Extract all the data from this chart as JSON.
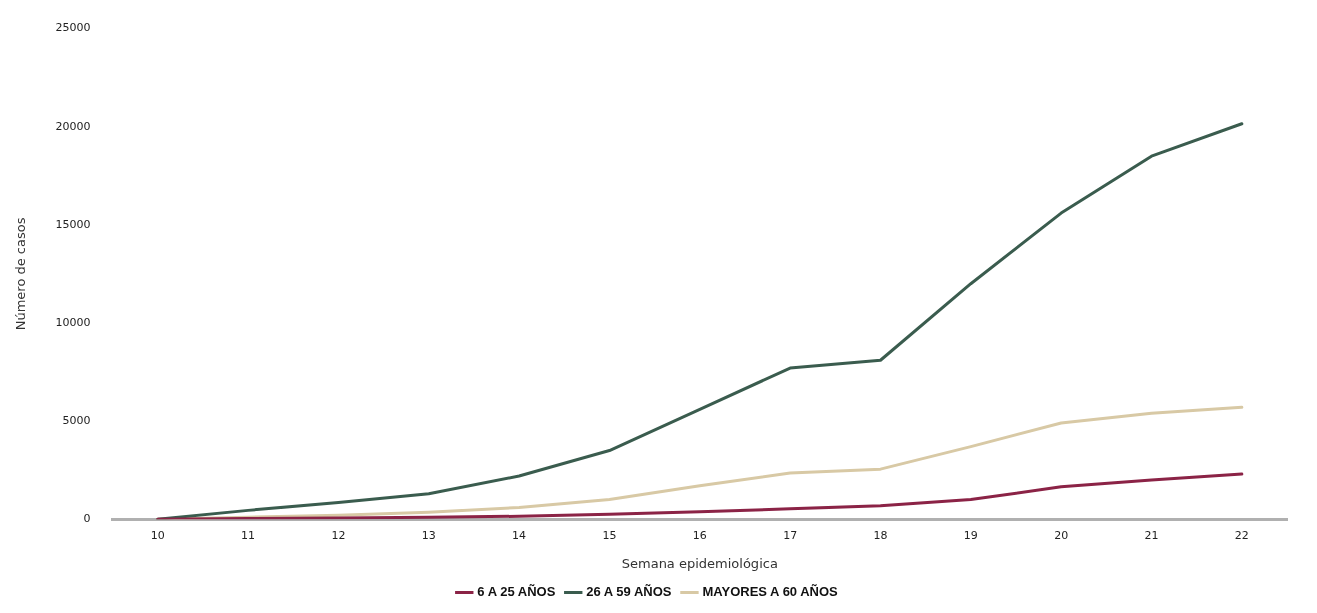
{
  "chart_data": {
    "type": "line",
    "xlabel": "Semana epidemiológica",
    "ylabel": "Número de casos",
    "categories": [
      "10",
      "11",
      "12",
      "13",
      "14",
      "15",
      "16",
      "17",
      "18",
      "19",
      "20",
      "21",
      "22"
    ],
    "series": [
      {
        "name": "6 A 25 AÑOS",
        "color": "#8b2346",
        "values": [
          0,
          30,
          60,
          100,
          150,
          250,
          380,
          530,
          680,
          1000,
          1650,
          2000,
          2300
        ]
      },
      {
        "name": "26 A 59 AÑOS",
        "color": "#3a5c4e",
        "values": [
          0,
          450,
          850,
          1300,
          2200,
          3500,
          5600,
          7700,
          8100,
          12000,
          15600,
          18500,
          20150
        ]
      },
      {
        "name": "MAYORES A 60 AÑOS",
        "color": "#d8c9a5",
        "values": [
          0,
          100,
          200,
          350,
          600,
          1000,
          1700,
          2350,
          2550,
          3700,
          4900,
          5400,
          5700
        ]
      }
    ],
    "ylim": [
      0,
      25000
    ],
    "yticks": [
      0,
      5000,
      10000,
      15000,
      20000,
      25000
    ],
    "grid": false,
    "legend": "bottom",
    "marker": "none",
    "line_style": "solid"
  }
}
